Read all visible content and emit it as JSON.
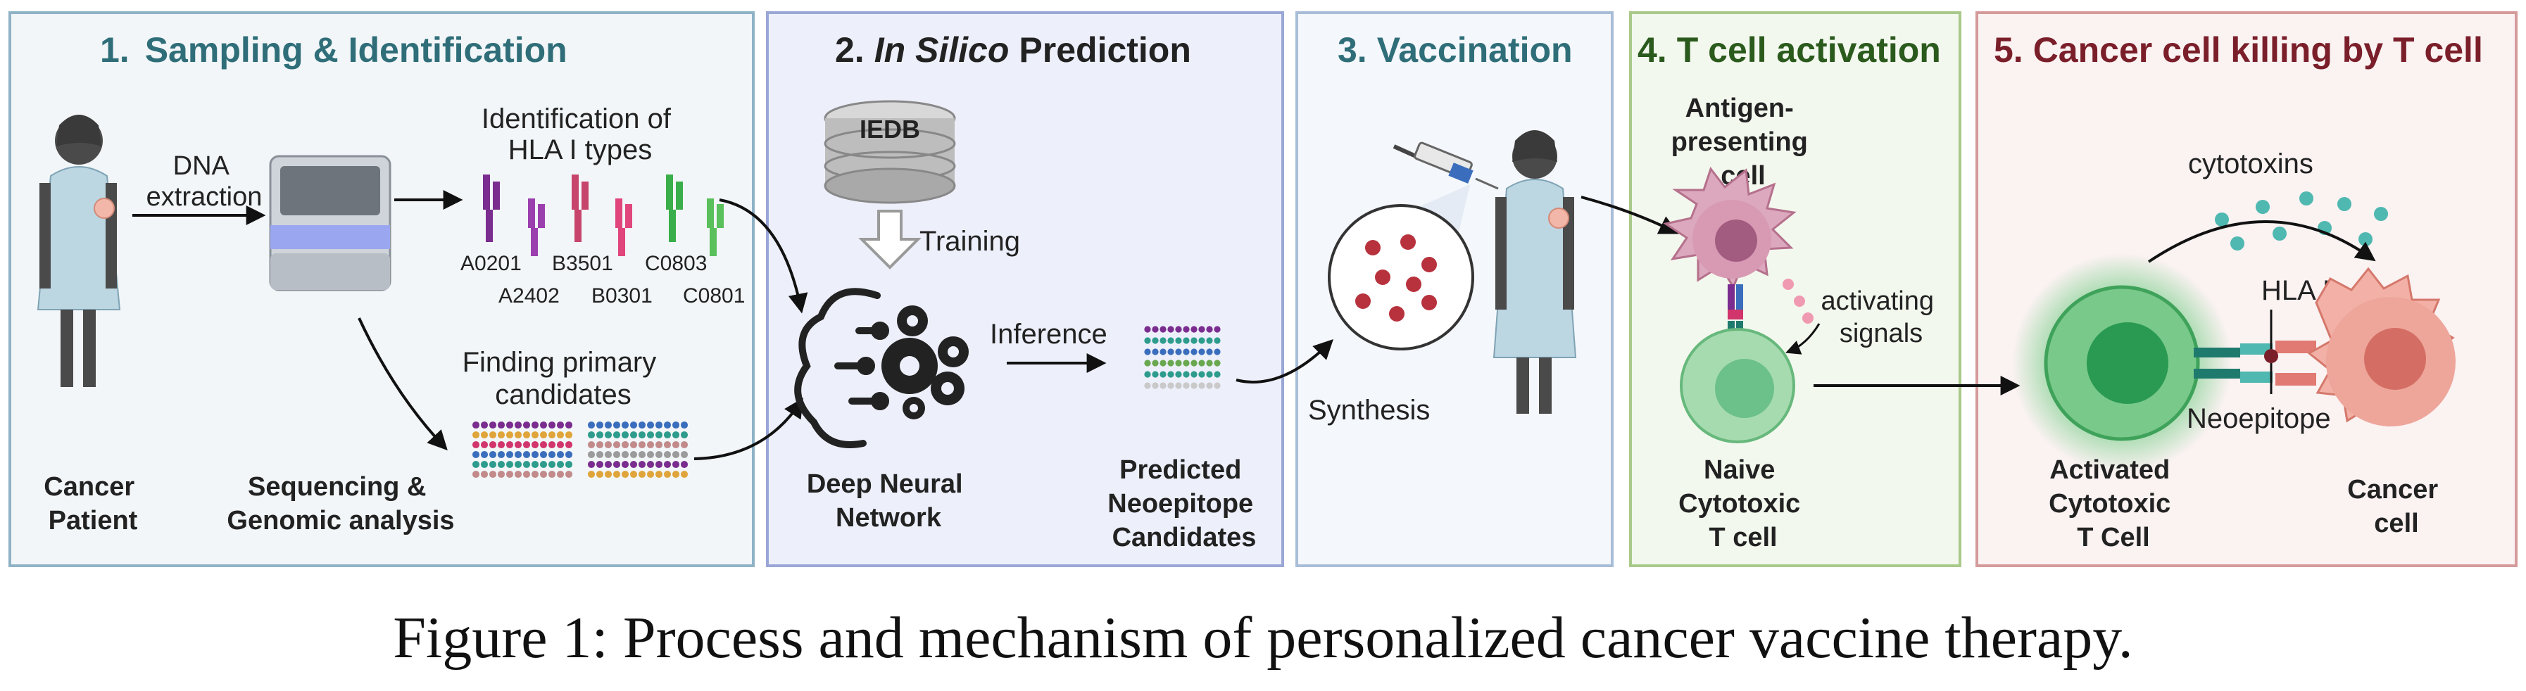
{
  "panels": [
    {
      "num": "1.",
      "title": "Sampling & Identification",
      "color": "#2f6e79"
    },
    {
      "num": "2.",
      "title_italic": "In Silico",
      "title": "Prediction",
      "color": "#222222"
    },
    {
      "num": "3.",
      "title": "Vaccination",
      "color": "#2f6e79"
    },
    {
      "num": "4.",
      "title": "T cell activation",
      "color": "#2b5a1d"
    },
    {
      "num": "5.",
      "title": "Cancer cell killing by T cell",
      "color": "#7a1f2a"
    }
  ],
  "panel1": {
    "dna_line1": "DNA",
    "dna_line2": "extraction",
    "hla_title_line1": "Identification of",
    "hla_title_line2": "HLA I types",
    "hla_types_top": [
      "A0201",
      "B3501",
      "C0803"
    ],
    "hla_types_bottom": [
      "A2402",
      "B0301",
      "C0801"
    ],
    "primary_line1": "Finding primary",
    "primary_line2": "candidates",
    "patient_line1": "Cancer",
    "patient_line2": "Patient",
    "seq_line1": "Sequencing &",
    "seq_line2": "Genomic analysis"
  },
  "panel2": {
    "db_label": "IEDB",
    "training": "Training",
    "inference": "Inference",
    "dnn_line1": "Deep Neural",
    "dnn_line2": "Network",
    "pred_line1": "Predicted",
    "pred_line2": "Neoepitope",
    "pred_line3": "Candidates"
  },
  "panel3": {
    "synthesis": "Synthesis"
  },
  "panel4": {
    "apc_line1": "Antigen-",
    "apc_line2": "presenting",
    "apc_line3": "cell",
    "signals_line1": "activating",
    "signals_line2": "signals",
    "naive_line1": "Naive",
    "naive_line2": "Cytotoxic",
    "naive_line3": "T cell"
  },
  "panel5": {
    "cytotoxins": "cytotoxins",
    "hla": "HLA I",
    "neoepitope": "Neoepitope",
    "act_line1": "Activated",
    "act_line2": "Cytotoxic",
    "act_line3": "T Cell",
    "cancer_line1": "Cancer",
    "cancer_line2": "cell"
  },
  "caption": "Figure 1: Process and mechanism of personalized cancer vaccine therapy.",
  "colors": {
    "hla_purple": "#7a2c8f",
    "hla_pink": "#d1356b",
    "hla_green": "#3aae4a",
    "tcell_green": "#5cb87a",
    "cancer_red": "#e78a80",
    "apc_pink": "#c9829b",
    "cytotoxin_teal": "#4fb8b0"
  }
}
